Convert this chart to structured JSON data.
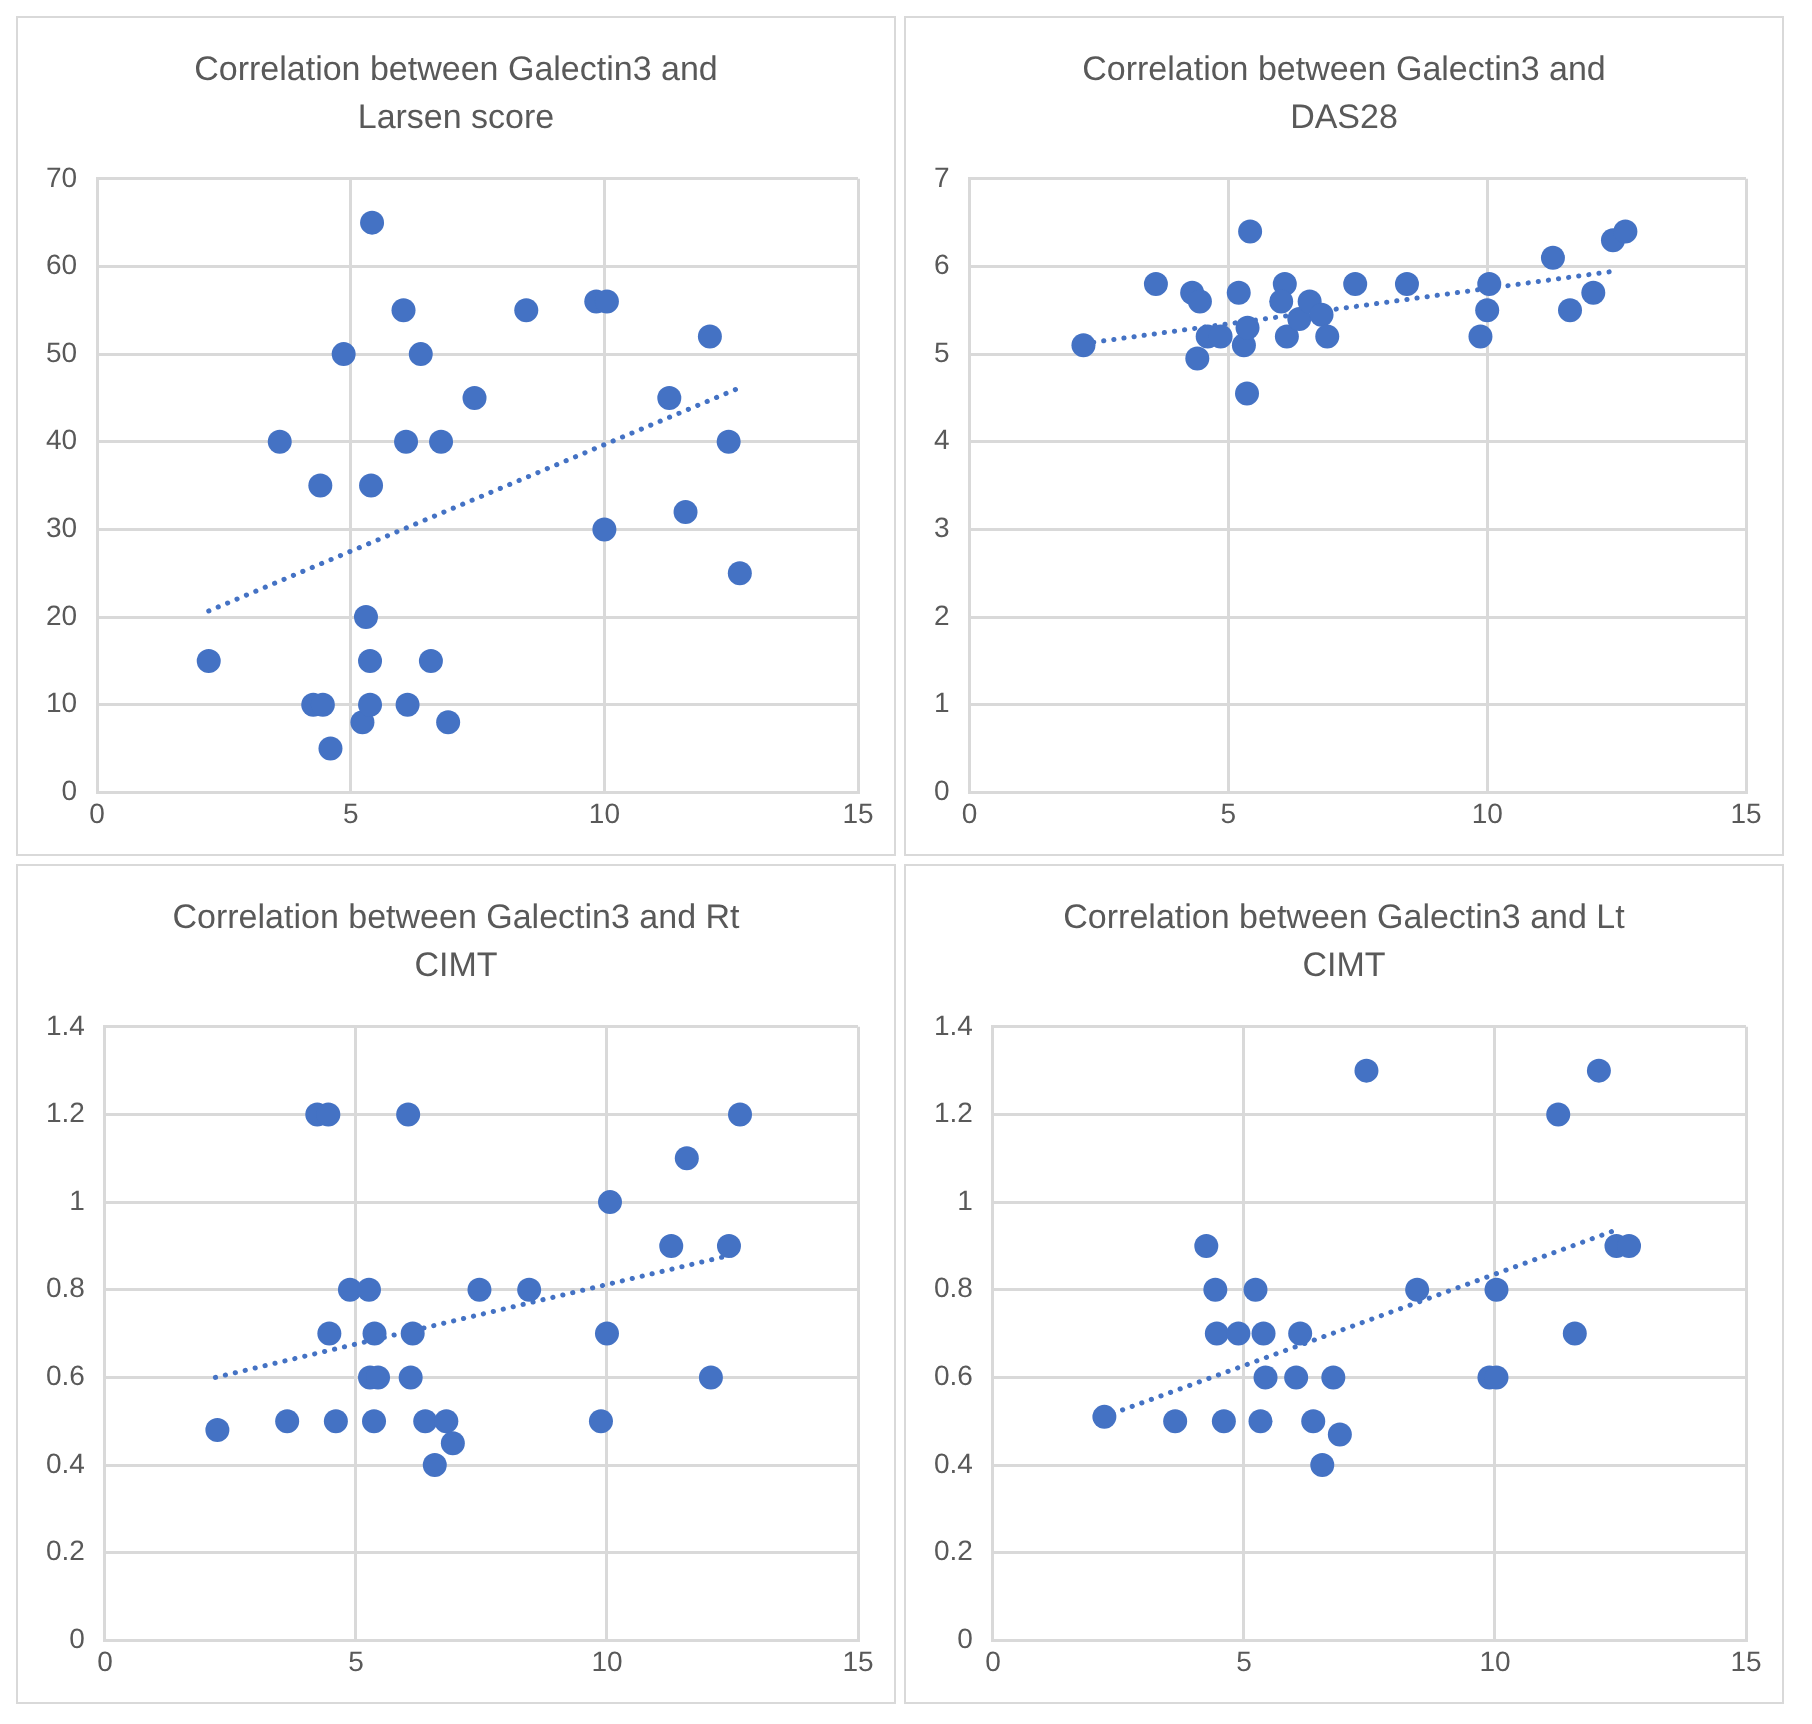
{
  "chart_data": [
    {
      "type": "scatter",
      "title": "Correlation between Galectin3 and Larsen score",
      "xlim": [
        0,
        15
      ],
      "xticks": [
        0,
        5,
        10,
        15
      ],
      "ylim": [
        0,
        70
      ],
      "yticks": [
        0,
        10,
        20,
        30,
        40,
        50,
        60,
        70
      ],
      "grid": true,
      "series": [
        {
          "type": "scatter",
          "marker": "circle",
          "color": "#4472c4",
          "x": [
            2.2,
            3.6,
            4.26,
            4.45,
            4.4,
            4.6,
            4.86,
            5.23,
            5.3,
            5.42,
            5.38,
            5.38,
            5.4,
            6.04,
            6.09,
            6.12,
            6.38,
            6.58,
            6.78,
            6.92,
            7.44,
            8.46,
            9.84,
            10.05,
            10.0,
            11.28,
            11.6,
            12.08,
            12.45,
            12.67
          ],
          "values": [
            15,
            40,
            10,
            10,
            35,
            5,
            50,
            8,
            20,
            65,
            15,
            10,
            35,
            55,
            40,
            10,
            50,
            15,
            40,
            8,
            45,
            55,
            56,
            56,
            30,
            45,
            32,
            52,
            40,
            25
          ]
        },
        {
          "type": "line",
          "marker": "none",
          "line_style": "dotted",
          "color": "#4472c4",
          "x": [
            2.2,
            12.6
          ],
          "values": [
            20.7,
            46
          ]
        }
      ]
    },
    {
      "type": "scatter",
      "title": "Correlation between Galectin3 and DAS28",
      "xlim": [
        0,
        15
      ],
      "xticks": [
        0,
        5,
        10,
        15
      ],
      "ylim": [
        0,
        7
      ],
      "yticks": [
        0,
        1,
        2,
        3,
        4,
        5,
        6,
        7
      ],
      "grid": true,
      "series": [
        {
          "type": "scatter",
          "marker": "circle",
          "color": "#4472c4",
          "x": [
            2.2,
            3.6,
            4.3,
            4.45,
            4.4,
            4.6,
            4.85,
            5.2,
            5.3,
            5.37,
            5.36,
            5.42,
            6.09,
            6.02,
            6.13,
            6.37,
            6.57,
            6.8,
            6.91,
            7.45,
            8.45,
            9.87,
            10.0,
            10.04,
            11.27,
            11.6,
            12.05,
            12.43,
            12.67
          ],
          "values": [
            5.1,
            5.8,
            5.7,
            5.6,
            4.95,
            5.2,
            5.2,
            5.7,
            5.1,
            5.3,
            4.55,
            6.4,
            5.8,
            5.6,
            5.2,
            5.4,
            5.6,
            5.45,
            5.2,
            5.8,
            5.8,
            5.2,
            5.5,
            5.8,
            6.1,
            5.5,
            5.7,
            6.3,
            6.4
          ]
        },
        {
          "type": "line",
          "marker": "none",
          "line_style": "dotted",
          "color": "#4472c4",
          "x": [
            2.2,
            12.5
          ],
          "values": [
            5.12,
            5.95
          ]
        }
      ]
    },
    {
      "type": "scatter",
      "title": "Correlation between Galectin3 and Rt CIMT",
      "xlim": [
        0,
        15
      ],
      "xticks": [
        0,
        5,
        10,
        15
      ],
      "ylim": [
        0,
        1.4
      ],
      "yticks": [
        0,
        0.2,
        0.4,
        0.6,
        0.8,
        1,
        1.2,
        1.4
      ],
      "grid": true,
      "series": [
        {
          "type": "scatter",
          "marker": "circle",
          "color": "#4472c4",
          "x": [
            2.24,
            3.63,
            4.23,
            4.45,
            4.47,
            4.6,
            4.88,
            5.26,
            5.36,
            5.28,
            5.44,
            5.37,
            6.04,
            6.09,
            6.13,
            6.38,
            6.8,
            6.93,
            6.57,
            7.46,
            8.45,
            9.88,
            10.0,
            10.06,
            11.28,
            11.59,
            12.07,
            12.43,
            12.65
          ],
          "values": [
            0.48,
            0.5,
            1.2,
            1.2,
            0.7,
            0.5,
            0.8,
            0.8,
            0.5,
            0.6,
            0.6,
            0.7,
            1.2,
            0.6,
            0.7,
            0.5,
            0.5,
            0.45,
            0.4,
            0.8,
            0.8,
            0.5,
            0.7,
            1.0,
            0.9,
            1.1,
            0.6,
            0.9,
            1.2
          ]
        },
        {
          "type": "line",
          "marker": "none",
          "line_style": "dotted",
          "color": "#4472c4",
          "x": [
            2.2,
            12.5
          ],
          "values": [
            0.6,
            0.88
          ]
        }
      ]
    },
    {
      "type": "scatter",
      "title": "Correlation between Galectin3 and Lt CIMT",
      "xlim": [
        0,
        15
      ],
      "xticks": [
        0,
        5,
        10,
        15
      ],
      "ylim": [
        0,
        1.4
      ],
      "yticks": [
        0,
        0.2,
        0.4,
        0.6,
        0.8,
        1,
        1.2,
        1.4
      ],
      "grid": true,
      "series": [
        {
          "type": "scatter",
          "marker": "circle",
          "color": "#4472c4",
          "x": [
            2.22,
            3.63,
            4.25,
            4.43,
            4.46,
            4.6,
            4.89,
            5.23,
            5.33,
            5.39,
            5.43,
            6.04,
            6.12,
            6.38,
            6.56,
            6.78,
            6.91,
            7.44,
            8.45,
            9.89,
            10.03,
            10.03,
            11.26,
            11.59,
            12.07,
            12.42,
            12.67
          ],
          "values": [
            0.51,
            0.5,
            0.9,
            0.8,
            0.7,
            0.5,
            0.7,
            0.8,
            0.5,
            0.7,
            0.6,
            0.6,
            0.7,
            0.5,
            0.4,
            0.6,
            0.47,
            1.3,
            0.8,
            0.6,
            0.6,
            0.8,
            1.2,
            0.7,
            1.3,
            0.9,
            0.9
          ]
        },
        {
          "type": "line",
          "marker": "none",
          "line_style": "dotted",
          "color": "#4472c4",
          "x": [
            2.2,
            12.5
          ],
          "values": [
            0.51,
            0.94
          ]
        }
      ]
    }
  ]
}
